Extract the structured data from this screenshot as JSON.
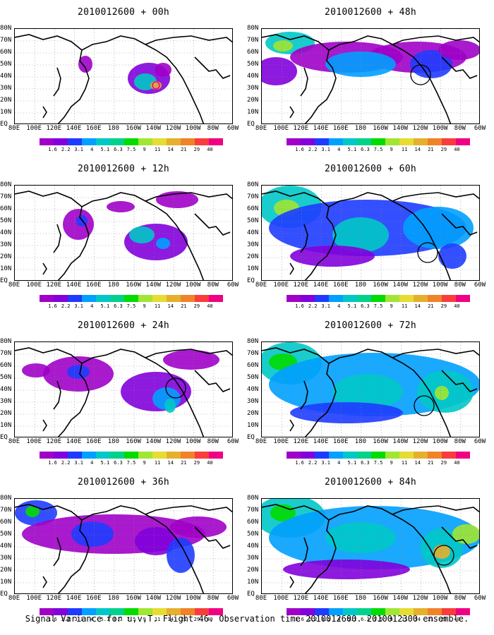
{
  "caption": "Signal Variance for u,v,T. Flight 46. Observation time 2010012600. 2010012300 ensemble.",
  "lat_labels": [
    "80N",
    "70N",
    "60N",
    "50N",
    "40N",
    "30N",
    "20N",
    "10N",
    "EQ"
  ],
  "lon_labels": [
    "80E",
    "100E",
    "120E",
    "140E",
    "160E",
    "180",
    "160W",
    "140W",
    "120W",
    "100W",
    "80W",
    "60W"
  ],
  "colorbar": {
    "levels": [
      "1.6",
      "2.2",
      "3.1",
      "4",
      "5.1",
      "6.3",
      "7.5",
      "9",
      "11",
      "14",
      "21",
      "29",
      "40"
    ],
    "colors": [
      "#a000c8",
      "#8200dc",
      "#1e3cff",
      "#00a0ff",
      "#00c8c8",
      "#00d28c",
      "#00dc00",
      "#a0e632",
      "#e6dc32",
      "#e6af2d",
      "#f08228",
      "#fa3c3c",
      "#f00082"
    ]
  },
  "panels": [
    {
      "title": "2010012600 + 00h",
      "circle": false
    },
    {
      "title": "2010012600 + 48h",
      "circle": true
    },
    {
      "title": "2010012600 + 12h",
      "circle": false
    },
    {
      "title": "2010012600 + 60h",
      "circle": true
    },
    {
      "title": "2010012600 + 24h",
      "circle": true
    },
    {
      "title": "2010012600 + 72h",
      "circle": true
    },
    {
      "title": "2010012600 + 36h",
      "circle": false
    },
    {
      "title": "2010012600 + 84h",
      "circle": true
    }
  ]
}
